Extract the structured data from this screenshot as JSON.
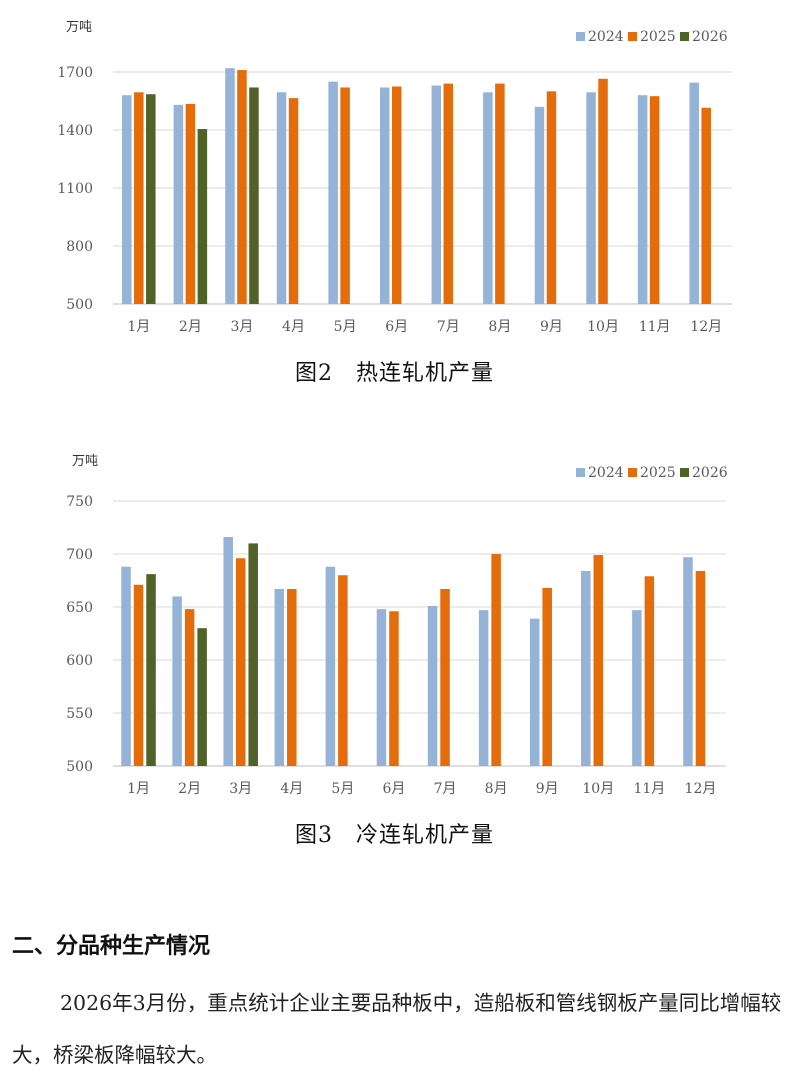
{
  "colors": {
    "2024": "#95b3d7",
    "2025": "#e46c0a",
    "2026": "#4f6228",
    "grid": "#d9d9d9",
    "axis": "#bfbfbf",
    "text": "#595959"
  },
  "figure2": {
    "caption": "图2　热连轧机产量",
    "chart_data": {
      "type": "bar",
      "unit_label": "万吨",
      "categories": [
        "1月",
        "2月",
        "3月",
        "4月",
        "5月",
        "6月",
        "7月",
        "8月",
        "9月",
        "10月",
        "11月",
        "12月"
      ],
      "ylim": [
        500,
        1700
      ],
      "yticks": [
        500,
        800,
        1100,
        1400,
        1700
      ],
      "grid": true,
      "legend_position": "top-right",
      "series": [
        {
          "name": "2024",
          "color": "#95b3d7",
          "values": [
            1580,
            1530,
            1720,
            1595,
            1650,
            1620,
            1630,
            1595,
            1520,
            1595,
            1580,
            1645
          ]
        },
        {
          "name": "2025",
          "color": "#e46c0a",
          "values": [
            1595,
            1535,
            1710,
            1565,
            1620,
            1625,
            1640,
            1640,
            1600,
            1665,
            1575,
            1515
          ]
        },
        {
          "name": "2026",
          "color": "#4f6228",
          "values": [
            1585,
            1405,
            1620,
            null,
            null,
            null,
            null,
            null,
            null,
            null,
            null,
            null
          ]
        }
      ]
    }
  },
  "figure3": {
    "caption": "图3　冷连轧机产量",
    "chart_data": {
      "type": "bar",
      "unit_label": "万吨",
      "categories": [
        "1月",
        "2月",
        "3月",
        "4月",
        "5月",
        "6月",
        "7月",
        "8月",
        "9月",
        "10月",
        "11月",
        "12月"
      ],
      "ylim": [
        500,
        750
      ],
      "yticks": [
        500,
        550,
        600,
        650,
        700,
        750
      ],
      "grid": true,
      "legend_position": "top-right",
      "series": [
        {
          "name": "2024",
          "color": "#95b3d7",
          "values": [
            688,
            660,
            716,
            667,
            688,
            648,
            651,
            647,
            639,
            684,
            647,
            697
          ]
        },
        {
          "name": "2025",
          "color": "#e46c0a",
          "values": [
            671,
            648,
            696,
            667,
            680,
            646,
            667,
            700,
            668,
            699,
            679,
            684
          ]
        },
        {
          "name": "2026",
          "color": "#4f6228",
          "values": [
            681,
            630,
            710,
            null,
            null,
            null,
            null,
            null,
            null,
            null,
            null,
            null
          ]
        }
      ]
    }
  },
  "section": {
    "title": "二、分品种生产情况",
    "paragraph": "2026年3月份，重点统计企业主要品种板中，造船板和管线钢板产量同比增幅较大，桥梁板降幅较大。"
  }
}
